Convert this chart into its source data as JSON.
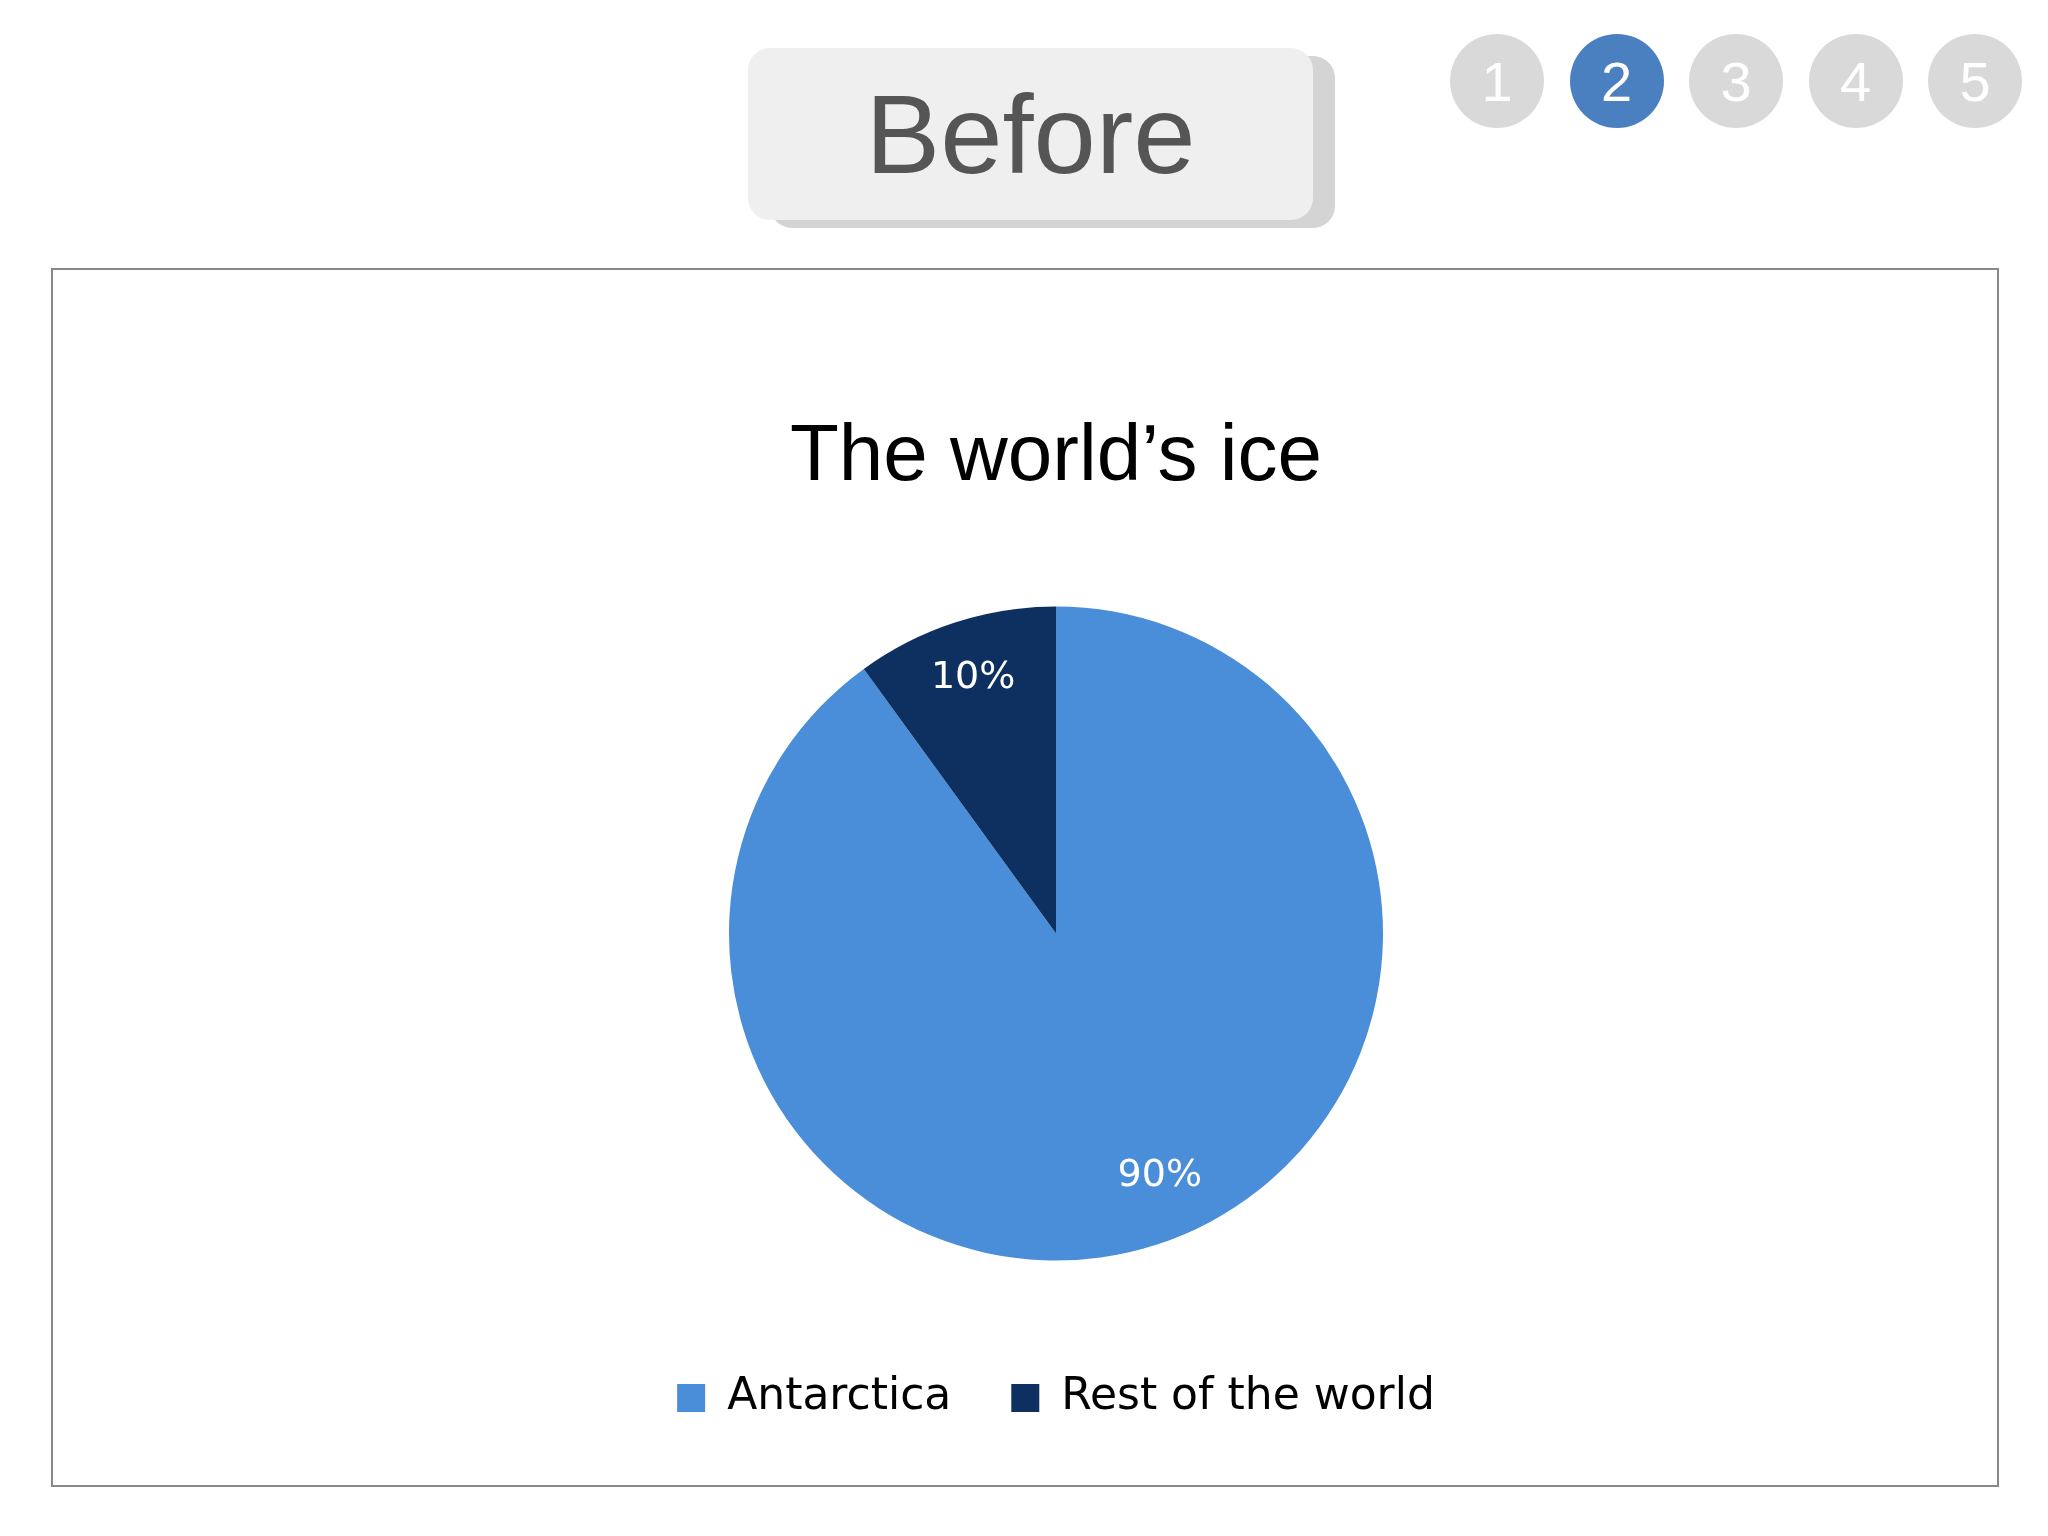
{
  "chart_data": {
    "type": "pie",
    "title": "The world’s ice",
    "categories": [
      "Antarctica",
      "Rest of the world"
    ],
    "values": [
      90,
      10
    ],
    "colors": [
      "#4a8ed9",
      "#0e3060"
    ],
    "value_labels": [
      "90%",
      "10%"
    ],
    "legend": "bottom",
    "annotations": [
      "Before",
      "1",
      "2",
      "3",
      "4",
      "5"
    ]
  }
}
